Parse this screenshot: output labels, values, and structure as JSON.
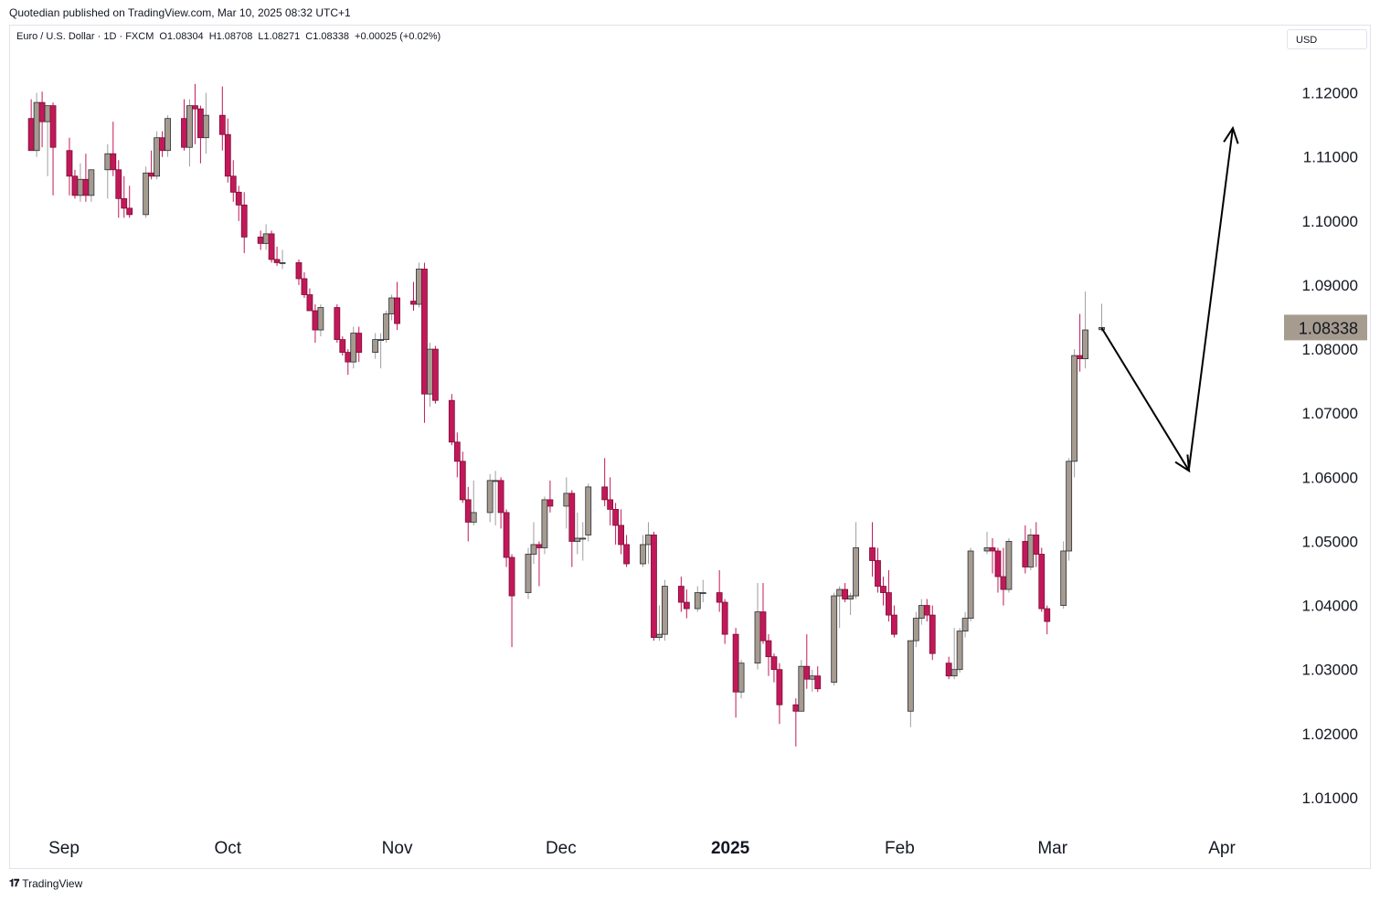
{
  "caption": "Quotedian published on TradingView.com, Mar 10, 2025 08:32 UTC+1",
  "legend": {
    "symbol": "Euro / U.S. Dollar · 1D · FXCM",
    "open": "O1.08304",
    "high": "H1.08708",
    "low": "L1.08271",
    "close": "C1.08338",
    "change": "+0.00025 (+0.02%)"
  },
  "currency": "USD",
  "brand": "TradingView",
  "colors": {
    "up": "#a69b8f",
    "down": "#c2185b",
    "wick": "#9e9e9e",
    "price_label_bg": "#a69b8f",
    "grid": "#ffffff"
  },
  "chart_data": {
    "type": "candlestick",
    "series_name": "Euro / U.S. Dollar",
    "ylim": [
      1.005,
      1.1305
    ],
    "y_ticks": [
      "1.01000",
      "1.02000",
      "1.03000",
      "1.04000",
      "1.05000",
      "1.06000",
      "1.07000",
      "1.08000",
      "1.09000",
      "1.10000",
      "1.11000",
      "1.12000"
    ],
    "x_labels": [
      {
        "label": "Sep",
        "date": "2024-09-01",
        "bold": false
      },
      {
        "label": "Oct",
        "date": "2024-10-01",
        "bold": false
      },
      {
        "label": "Nov",
        "date": "2024-11-01",
        "bold": false
      },
      {
        "label": "Dec",
        "date": "2024-12-01",
        "bold": false
      },
      {
        "label": "2025",
        "date": "2025-01-01",
        "bold": true
      },
      {
        "label": "Feb",
        "date": "2025-02-01",
        "bold": false
      },
      {
        "label": "Mar",
        "date": "2025-03-01",
        "bold": false
      },
      {
        "label": "Apr",
        "date": "2025-04-01",
        "bold": false
      }
    ],
    "last_price": "1.08338",
    "candles": [
      {
        "date": "2024-08-26",
        "o": 1.116,
        "h": 1.119,
        "l": 1.111,
        "c": 1.111
      },
      {
        "date": "2024-08-27",
        "o": 1.111,
        "h": 1.12,
        "l": 1.11,
        "c": 1.1185
      },
      {
        "date": "2024-08-28",
        "o": 1.1185,
        "h": 1.1202,
        "l": 1.1115,
        "c": 1.1155
      },
      {
        "date": "2024-08-29",
        "o": 1.1155,
        "h": 1.118,
        "l": 1.107,
        "c": 1.118
      },
      {
        "date": "2024-08-30",
        "o": 1.118,
        "h": 1.1185,
        "l": 1.104,
        "c": 1.1115
      },
      {
        "date": "2024-09-02",
        "o": 1.111,
        "h": 1.113,
        "l": 1.104,
        "c": 1.107
      },
      {
        "date": "2024-09-03",
        "o": 1.107,
        "h": 1.108,
        "l": 1.1035,
        "c": 1.104
      },
      {
        "date": "2024-09-04",
        "o": 1.104,
        "h": 1.109,
        "l": 1.103,
        "c": 1.1065
      },
      {
        "date": "2024-09-05",
        "o": 1.1065,
        "h": 1.1105,
        "l": 1.103,
        "c": 1.104
      },
      {
        "date": "2024-09-06",
        "o": 1.104,
        "h": 1.108,
        "l": 1.103,
        "c": 1.108
      },
      {
        "date": "2024-09-09",
        "o": 1.108,
        "h": 1.112,
        "l": 1.1035,
        "c": 1.1105
      },
      {
        "date": "2024-09-10",
        "o": 1.1105,
        "h": 1.1155,
        "l": 1.107,
        "c": 1.108
      },
      {
        "date": "2024-09-11",
        "o": 1.108,
        "h": 1.1095,
        "l": 1.1005,
        "c": 1.1035
      },
      {
        "date": "2024-09-12",
        "o": 1.1035,
        "h": 1.107,
        "l": 1.1005,
        "c": 1.102
      },
      {
        "date": "2024-09-13",
        "o": 1.102,
        "h": 1.1055,
        "l": 1.1005,
        "c": 1.101
      },
      {
        "date": "2024-09-16",
        "o": 1.101,
        "h": 1.1085,
        "l": 1.1005,
        "c": 1.1075
      },
      {
        "date": "2024-09-17",
        "o": 1.1075,
        "h": 1.111,
        "l": 1.1065,
        "c": 1.107
      },
      {
        "date": "2024-09-18",
        "o": 1.107,
        "h": 1.114,
        "l": 1.1065,
        "c": 1.113
      },
      {
        "date": "2024-09-19",
        "o": 1.113,
        "h": 1.114,
        "l": 1.11,
        "c": 1.111
      },
      {
        "date": "2024-09-20",
        "o": 1.111,
        "h": 1.1165,
        "l": 1.11,
        "c": 1.116
      },
      {
        "date": "2024-09-23",
        "o": 1.116,
        "h": 1.119,
        "l": 1.111,
        "c": 1.1115
      },
      {
        "date": "2024-09-24",
        "o": 1.1115,
        "h": 1.119,
        "l": 1.1085,
        "c": 1.118
      },
      {
        "date": "2024-09-25",
        "o": 1.118,
        "h": 1.1214,
        "l": 1.112,
        "c": 1.1175
      },
      {
        "date": "2024-09-26",
        "o": 1.1175,
        "h": 1.118,
        "l": 1.109,
        "c": 1.113
      },
      {
        "date": "2024-09-27",
        "o": 1.113,
        "h": 1.12,
        "l": 1.1105,
        "c": 1.1165
      },
      {
        "date": "2024-09-30",
        "o": 1.1165,
        "h": 1.121,
        "l": 1.111,
        "c": 1.1135
      },
      {
        "date": "2024-10-01",
        "o": 1.1135,
        "h": 1.116,
        "l": 1.106,
        "c": 1.107
      },
      {
        "date": "2024-10-02",
        "o": 1.107,
        "h": 1.1095,
        "l": 1.103,
        "c": 1.1045
      },
      {
        "date": "2024-10-03",
        "o": 1.1045,
        "h": 1.1055,
        "l": 1.1,
        "c": 1.1025
      },
      {
        "date": "2024-10-04",
        "o": 1.1025,
        "h": 1.1045,
        "l": 1.095,
        "c": 1.0975
      },
      {
        "date": "2024-10-07",
        "o": 1.0975,
        "h": 1.0985,
        "l": 1.0955,
        "c": 1.0965
      },
      {
        "date": "2024-10-08",
        "o": 1.0965,
        "h": 1.0995,
        "l": 1.0955,
        "c": 1.098
      },
      {
        "date": "2024-10-09",
        "o": 1.098,
        "h": 1.0985,
        "l": 1.0935,
        "c": 1.094
      },
      {
        "date": "2024-10-10",
        "o": 1.094,
        "h": 1.096,
        "l": 1.093,
        "c": 1.0935
      },
      {
        "date": "2024-10-11",
        "o": 1.0935,
        "h": 1.0955,
        "l": 1.0925,
        "c": 1.0935
      },
      {
        "date": "2024-10-14",
        "o": 1.0935,
        "h": 1.094,
        "l": 1.09,
        "c": 1.091
      },
      {
        "date": "2024-10-15",
        "o": 1.091,
        "h": 1.092,
        "l": 1.088,
        "c": 1.0885
      },
      {
        "date": "2024-10-16",
        "o": 1.0885,
        "h": 1.0895,
        "l": 1.086,
        "c": 1.086
      },
      {
        "date": "2024-10-17",
        "o": 1.086,
        "h": 1.087,
        "l": 1.081,
        "c": 1.083
      },
      {
        "date": "2024-10-18",
        "o": 1.083,
        "h": 1.087,
        "l": 1.082,
        "c": 1.0865
      },
      {
        "date": "2024-10-21",
        "o": 1.0865,
        "h": 1.087,
        "l": 1.081,
        "c": 1.0815
      },
      {
        "date": "2024-10-22",
        "o": 1.0815,
        "h": 1.082,
        "l": 1.079,
        "c": 1.0795
      },
      {
        "date": "2024-10-23",
        "o": 1.0795,
        "h": 1.08,
        "l": 1.076,
        "c": 1.078
      },
      {
        "date": "2024-10-24",
        "o": 1.078,
        "h": 1.0835,
        "l": 1.077,
        "c": 1.0825
      },
      {
        "date": "2024-10-25",
        "o": 1.0825,
        "h": 1.0835,
        "l": 1.078,
        "c": 1.0795
      },
      {
        "date": "2024-10-28",
        "o": 1.0795,
        "h": 1.0825,
        "l": 1.0785,
        "c": 1.0815
      },
      {
        "date": "2024-10-29",
        "o": 1.0815,
        "h": 1.0825,
        "l": 1.077,
        "c": 1.0815
      },
      {
        "date": "2024-10-30",
        "o": 1.0815,
        "h": 1.086,
        "l": 1.081,
        "c": 1.0855
      },
      {
        "date": "2024-10-31",
        "o": 1.0855,
        "h": 1.0885,
        "l": 1.0845,
        "c": 1.088
      },
      {
        "date": "2024-11-01",
        "o": 1.088,
        "h": 1.0905,
        "l": 1.083,
        "c": 1.084
      },
      {
        "date": "2024-11-04",
        "o": 1.0875,
        "h": 1.0905,
        "l": 1.086,
        "c": 1.087
      },
      {
        "date": "2024-11-05",
        "o": 1.087,
        "h": 1.0935,
        "l": 1.0865,
        "c": 1.0925
      },
      {
        "date": "2024-11-06",
        "o": 1.0925,
        "h": 1.0935,
        "l": 1.0685,
        "c": 1.073
      },
      {
        "date": "2024-11-07",
        "o": 1.073,
        "h": 1.081,
        "l": 1.071,
        "c": 1.08
      },
      {
        "date": "2024-11-08",
        "o": 1.08,
        "h": 1.0805,
        "l": 1.0715,
        "c": 1.072
      },
      {
        "date": "2024-11-11",
        "o": 1.072,
        "h": 1.073,
        "l": 1.065,
        "c": 1.0655
      },
      {
        "date": "2024-11-12",
        "o": 1.0655,
        "h": 1.067,
        "l": 1.06,
        "c": 1.0625
      },
      {
        "date": "2024-11-13",
        "o": 1.0625,
        "h": 1.064,
        "l": 1.056,
        "c": 1.0565
      },
      {
        "date": "2024-11-14",
        "o": 1.0565,
        "h": 1.0585,
        "l": 1.05,
        "c": 1.053
      },
      {
        "date": "2024-11-15",
        "o": 1.053,
        "h": 1.0595,
        "l": 1.0525,
        "c": 1.0545
      },
      {
        "date": "2024-11-18",
        "o": 1.0545,
        "h": 1.0605,
        "l": 1.053,
        "c": 1.0595
      },
      {
        "date": "2024-11-19",
        "o": 1.0595,
        "h": 1.061,
        "l": 1.0525,
        "c": 1.0595
      },
      {
        "date": "2024-11-20",
        "o": 1.0595,
        "h": 1.06,
        "l": 1.052,
        "c": 1.0545
      },
      {
        "date": "2024-11-21",
        "o": 1.0545,
        "h": 1.055,
        "l": 1.046,
        "c": 1.0475
      },
      {
        "date": "2024-11-22",
        "o": 1.0475,
        "h": 1.048,
        "l": 1.0335,
        "c": 1.0415
      },
      {
        "date": "2024-11-25",
        "o": 1.042,
        "h": 1.049,
        "l": 1.041,
        "c": 1.048
      },
      {
        "date": "2024-11-26",
        "o": 1.048,
        "h": 1.053,
        "l": 1.0465,
        "c": 1.0495
      },
      {
        "date": "2024-11-27",
        "o": 1.0495,
        "h": 1.05,
        "l": 1.043,
        "c": 1.049
      },
      {
        "date": "2024-11-28",
        "o": 1.049,
        "h": 1.057,
        "l": 1.048,
        "c": 1.0565
      },
      {
        "date": "2024-11-29",
        "o": 1.0565,
        "h": 1.0595,
        "l": 1.0545,
        "c": 1.0555
      },
      {
        "date": "2024-12-02",
        "o": 1.0555,
        "h": 1.06,
        "l": 1.052,
        "c": 1.0575
      },
      {
        "date": "2024-12-03",
        "o": 1.0575,
        "h": 1.058,
        "l": 1.046,
        "c": 1.05
      },
      {
        "date": "2024-12-04",
        "o": 1.05,
        "h": 1.0545,
        "l": 1.048,
        "c": 1.0505
      },
      {
        "date": "2024-12-05",
        "o": 1.0505,
        "h": 1.053,
        "l": 1.047,
        "c": 1.0505
      },
      {
        "date": "2024-12-06",
        "o": 1.051,
        "h": 1.059,
        "l": 1.05,
        "c": 1.0585
      },
      {
        "date": "2024-12-09",
        "o": 1.0585,
        "h": 1.063,
        "l": 1.0555,
        "c": 1.0565
      },
      {
        "date": "2024-12-10",
        "o": 1.0565,
        "h": 1.06,
        "l": 1.0525,
        "c": 1.055
      },
      {
        "date": "2024-12-11",
        "o": 1.055,
        "h": 1.056,
        "l": 1.0495,
        "c": 1.0525
      },
      {
        "date": "2024-12-12",
        "o": 1.0525,
        "h": 1.055,
        "l": 1.048,
        "c": 1.0495
      },
      {
        "date": "2024-12-13",
        "o": 1.0495,
        "h": 1.051,
        "l": 1.046,
        "c": 1.0465
      },
      {
        "date": "2024-12-16",
        "o": 1.0465,
        "h": 1.051,
        "l": 1.046,
        "c": 1.0495
      },
      {
        "date": "2024-12-17",
        "o": 1.0495,
        "h": 1.053,
        "l": 1.0465,
        "c": 1.051
      },
      {
        "date": "2024-12-18",
        "o": 1.051,
        "h": 1.0515,
        "l": 1.0345,
        "c": 1.035
      },
      {
        "date": "2024-12-19",
        "o": 1.035,
        "h": 1.04,
        "l": 1.0345,
        "c": 1.0355
      },
      {
        "date": "2024-12-20",
        "o": 1.0355,
        "h": 1.044,
        "l": 1.0345,
        "c": 1.043
      },
      {
        "date": "2024-12-23",
        "o": 1.043,
        "h": 1.0445,
        "l": 1.039,
        "c": 1.0405
      },
      {
        "date": "2024-12-24",
        "o": 1.0405,
        "h": 1.0425,
        "l": 1.038,
        "c": 1.0395
      },
      {
        "date": "2024-12-26",
        "o": 1.0395,
        "h": 1.043,
        "l": 1.039,
        "c": 1.042
      },
      {
        "date": "2024-12-27",
        "o": 1.042,
        "h": 1.044,
        "l": 1.0405,
        "c": 1.042
      },
      {
        "date": "2024-12-30",
        "o": 1.042,
        "h": 1.0455,
        "l": 1.039,
        "c": 1.0405
      },
      {
        "date": "2024-12-31",
        "o": 1.0405,
        "h": 1.041,
        "l": 1.034,
        "c": 1.0355
      },
      {
        "date": "2025-01-02",
        "o": 1.0355,
        "h": 1.0365,
        "l": 1.0225,
        "c": 1.0265
      },
      {
        "date": "2025-01-03",
        "o": 1.0265,
        "h": 1.0315,
        "l": 1.0255,
        "c": 1.031
      },
      {
        "date": "2025-01-06",
        "o": 1.031,
        "h": 1.0435,
        "l": 1.03,
        "c": 1.039
      },
      {
        "date": "2025-01-07",
        "o": 1.039,
        "h": 1.0435,
        "l": 1.034,
        "c": 1.0345
      },
      {
        "date": "2025-01-08",
        "o": 1.0345,
        "h": 1.0355,
        "l": 1.029,
        "c": 1.032
      },
      {
        "date": "2025-01-09",
        "o": 1.032,
        "h": 1.0325,
        "l": 1.028,
        "c": 1.03
      },
      {
        "date": "2025-01-10",
        "o": 1.03,
        "h": 1.031,
        "l": 1.0215,
        "c": 1.0245
      },
      {
        "date": "2025-01-13",
        "o": 1.0245,
        "h": 1.0255,
        "l": 1.018,
        "c": 1.0235
      },
      {
        "date": "2025-01-14",
        "o": 1.0235,
        "h": 1.0315,
        "l": 1.0235,
        "c": 1.0305
      },
      {
        "date": "2025-01-15",
        "o": 1.0305,
        "h": 1.0355,
        "l": 1.027,
        "c": 1.0285
      },
      {
        "date": "2025-01-16",
        "o": 1.0285,
        "h": 1.03,
        "l": 1.0265,
        "c": 1.029
      },
      {
        "date": "2025-01-17",
        "o": 1.029,
        "h": 1.0305,
        "l": 1.0265,
        "c": 1.027
      },
      {
        "date": "2025-01-20",
        "o": 1.028,
        "h": 1.042,
        "l": 1.0275,
        "c": 1.0415
      },
      {
        "date": "2025-01-21",
        "o": 1.0415,
        "h": 1.043,
        "l": 1.0365,
        "c": 1.0425
      },
      {
        "date": "2025-01-22",
        "o": 1.0425,
        "h": 1.0435,
        "l": 1.0405,
        "c": 1.041
      },
      {
        "date": "2025-01-23",
        "o": 1.041,
        "h": 1.042,
        "l": 1.0385,
        "c": 1.0415
      },
      {
        "date": "2025-01-24",
        "o": 1.0415,
        "h": 1.053,
        "l": 1.041,
        "c": 1.049
      },
      {
        "date": "2025-01-27",
        "o": 1.049,
        "h": 1.053,
        "l": 1.0445,
        "c": 1.047
      },
      {
        "date": "2025-01-28",
        "o": 1.047,
        "h": 1.049,
        "l": 1.042,
        "c": 1.043
      },
      {
        "date": "2025-01-29",
        "o": 1.043,
        "h": 1.0445,
        "l": 1.04,
        "c": 1.042
      },
      {
        "date": "2025-01-30",
        "o": 1.042,
        "h": 1.0455,
        "l": 1.0375,
        "c": 1.0385
      },
      {
        "date": "2025-01-31",
        "o": 1.0385,
        "h": 1.04,
        "l": 1.035,
        "c": 1.0355
      },
      {
        "date": "2025-02-03",
        "o": 1.0235,
        "h": 1.0345,
        "l": 1.021,
        "c": 1.0345
      },
      {
        "date": "2025-02-04",
        "o": 1.0345,
        "h": 1.039,
        "l": 1.0335,
        "c": 1.038
      },
      {
        "date": "2025-02-05",
        "o": 1.038,
        "h": 1.041,
        "l": 1.037,
        "c": 1.04
      },
      {
        "date": "2025-02-06",
        "o": 1.04,
        "h": 1.041,
        "l": 1.0375,
        "c": 1.0385
      },
      {
        "date": "2025-02-07",
        "o": 1.0385,
        "h": 1.04,
        "l": 1.0315,
        "c": 1.0325
      },
      {
        "date": "2025-02-10",
        "o": 1.031,
        "h": 1.032,
        "l": 1.0285,
        "c": 1.029
      },
      {
        "date": "2025-02-11",
        "o": 1.029,
        "h": 1.0365,
        "l": 1.0285,
        "c": 1.03
      },
      {
        "date": "2025-02-12",
        "o": 1.03,
        "h": 1.0365,
        "l": 1.0295,
        "c": 1.036
      },
      {
        "date": "2025-02-13",
        "o": 1.036,
        "h": 1.039,
        "l": 1.035,
        "c": 1.038
      },
      {
        "date": "2025-02-14",
        "o": 1.038,
        "h": 1.049,
        "l": 1.0375,
        "c": 1.0485
      },
      {
        "date": "2025-02-17",
        "o": 1.0485,
        "h": 1.0515,
        "l": 1.048,
        "c": 1.049
      },
      {
        "date": "2025-02-18",
        "o": 1.049,
        "h": 1.0505,
        "l": 1.045,
        "c": 1.0485
      },
      {
        "date": "2025-02-19",
        "o": 1.0485,
        "h": 1.049,
        "l": 1.042,
        "c": 1.0445
      },
      {
        "date": "2025-02-20",
        "o": 1.0445,
        "h": 1.049,
        "l": 1.04,
        "c": 1.0425
      },
      {
        "date": "2025-02-21",
        "o": 1.0425,
        "h": 1.0505,
        "l": 1.042,
        "c": 1.05
      },
      {
        "date": "2025-02-24",
        "o": 1.05,
        "h": 1.0525,
        "l": 1.045,
        "c": 1.046
      },
      {
        "date": "2025-02-25",
        "o": 1.046,
        "h": 1.052,
        "l": 1.0455,
        "c": 1.051
      },
      {
        "date": "2025-02-26",
        "o": 1.051,
        "h": 1.053,
        "l": 1.046,
        "c": 1.048
      },
      {
        "date": "2025-02-27",
        "o": 1.048,
        "h": 1.049,
        "l": 1.039,
        "c": 1.0395
      },
      {
        "date": "2025-02-28",
        "o": 1.0395,
        "h": 1.04,
        "l": 1.0355,
        "c": 1.0375
      },
      {
        "date": "2025-03-03",
        "o": 1.04,
        "h": 1.05,
        "l": 1.0395,
        "c": 1.0485
      },
      {
        "date": "2025-03-04",
        "o": 1.0485,
        "h": 1.063,
        "l": 1.047,
        "c": 1.0625
      },
      {
        "date": "2025-03-05",
        "o": 1.0625,
        "h": 1.08,
        "l": 1.06,
        "c": 1.079
      },
      {
        "date": "2025-03-06",
        "o": 1.079,
        "h": 1.0855,
        "l": 1.0765,
        "c": 1.0785
      },
      {
        "date": "2025-03-07",
        "o": 1.0785,
        "h": 1.089,
        "l": 1.077,
        "c": 1.083
      },
      {
        "date": "2025-03-10",
        "o": 1.08304,
        "h": 1.08708,
        "l": 1.08271,
        "c": 1.08338
      }
    ],
    "annotations": [
      {
        "type": "arrow",
        "points": [
          {
            "date": "2025-03-10",
            "y": 1.0833
          },
          {
            "date": "2025-03-26",
            "y": 1.061
          }
        ]
      },
      {
        "type": "arrow",
        "points": [
          {
            "date": "2025-03-26",
            "y": 1.0615
          },
          {
            "date": "2025-04-03",
            "y": 1.1145
          }
        ]
      }
    ]
  }
}
